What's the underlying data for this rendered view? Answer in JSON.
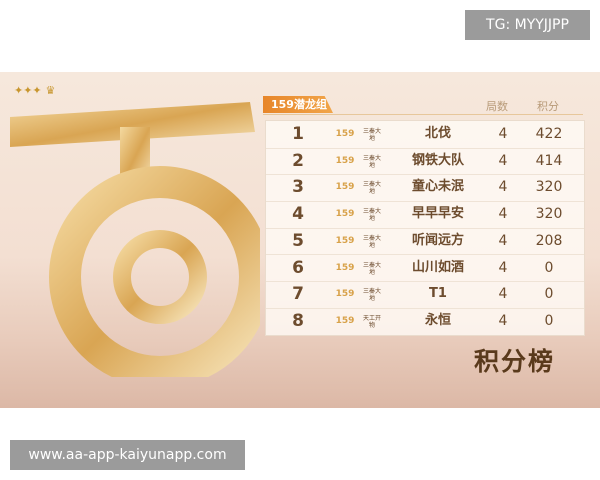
{
  "watermark_top": "TG: MYYJJPP",
  "watermark_bottom": "www.aa-app-kaiyunapp.com",
  "group_tab": "159潜龙组",
  "headers": {
    "games": "局数",
    "score": "积分"
  },
  "board_title": "积分榜",
  "rows": [
    {
      "rank": "1",
      "server": "三秦大地",
      "name": "北伐",
      "games": "4",
      "score": "422"
    },
    {
      "rank": "2",
      "server": "三秦大地",
      "name": "钢铁大队",
      "games": "4",
      "score": "414"
    },
    {
      "rank": "3",
      "server": "三秦大地",
      "name": "童心未泯",
      "games": "4",
      "score": "320"
    },
    {
      "rank": "4",
      "server": "三秦大地",
      "name": "早早早安",
      "games": "4",
      "score": "320"
    },
    {
      "rank": "5",
      "server": "三秦大地",
      "name": "听闻远方",
      "games": "4",
      "score": "208"
    },
    {
      "rank": "6",
      "server": "三秦大地",
      "name": "山川如酒",
      "games": "4",
      "score": "0"
    },
    {
      "rank": "7",
      "server": "三秦大地",
      "name": "T1",
      "games": "4",
      "score": "0"
    },
    {
      "rank": "8",
      "server": "天工开物",
      "name": "永恒",
      "games": "4",
      "score": "0"
    }
  ],
  "badge_text": "159"
}
